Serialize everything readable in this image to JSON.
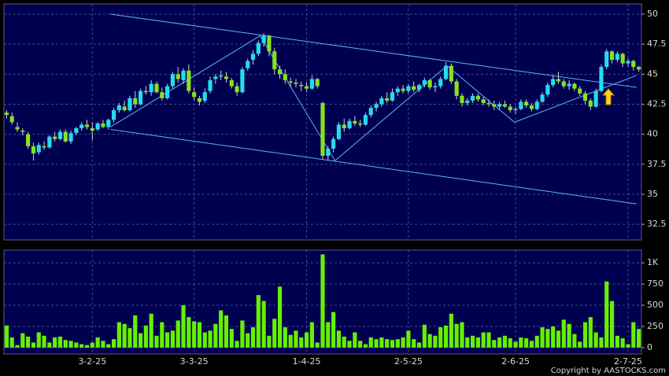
{
  "chart_data": [
    {
      "type": "candlestick",
      "categories": [
        null,
        null,
        null,
        null,
        null,
        null,
        null,
        null,
        null,
        null,
        null,
        null,
        null,
        null,
        null,
        null,
        "3-2-25",
        null,
        null,
        null,
        null,
        null,
        null,
        null,
        null,
        null,
        null,
        null,
        null,
        null,
        null,
        null,
        null,
        null,
        null,
        "3-3-25",
        null,
        null,
        null,
        null,
        null,
        null,
        null,
        null,
        null,
        null,
        null,
        null,
        null,
        null,
        null,
        null,
        null,
        null,
        null,
        null,
        "1-4-25",
        null,
        null,
        null,
        null,
        null,
        null,
        null,
        null,
        null,
        null,
        null,
        null,
        null,
        null,
        null,
        null,
        null,
        null,
        "2-5-25",
        null,
        null,
        null,
        null,
        null,
        null,
        null,
        null,
        null,
        null,
        null,
        null,
        null,
        null,
        null,
        null,
        null,
        null,
        null,
        "2-6-25",
        null,
        null,
        null,
        null,
        null,
        null,
        null,
        null,
        null,
        null,
        null,
        null,
        null,
        null,
        null,
        null,
        null,
        null,
        null,
        null,
        "2-7-25",
        null,
        null
      ],
      "ohlc": [
        [
          41.8,
          42.0,
          41.3,
          41.6
        ],
        [
          41.5,
          41.8,
          40.8,
          41.0
        ],
        [
          40.6,
          41.0,
          40.2,
          40.4
        ],
        [
          40.3,
          40.5,
          39.9,
          40.2
        ],
        [
          40.0,
          40.2,
          38.8,
          39.0
        ],
        [
          39.0,
          39.3,
          37.8,
          38.4
        ],
        [
          38.5,
          39.3,
          38.3,
          39.1
        ],
        [
          39.0,
          39.4,
          38.7,
          38.9
        ],
        [
          38.9,
          39.9,
          38.8,
          39.8
        ],
        [
          39.8,
          40.2,
          39.4,
          39.6
        ],
        [
          39.6,
          40.4,
          39.5,
          40.2
        ],
        [
          40.2,
          40.4,
          39.3,
          39.4
        ],
        [
          39.4,
          40.3,
          39.2,
          40.1
        ],
        [
          40.1,
          40.6,
          39.9,
          40.5
        ],
        [
          40.5,
          41.0,
          40.3,
          40.8
        ],
        [
          40.8,
          41.2,
          40.4,
          40.6
        ],
        [
          40.5,
          41.0,
          39.5,
          40.3
        ],
        [
          40.4,
          41.0,
          40.3,
          40.9
        ],
        [
          40.9,
          41.2,
          40.5,
          40.6
        ],
        [
          40.6,
          41.3,
          40.4,
          41.2
        ],
        [
          41.2,
          42.2,
          41.0,
          42.0
        ],
        [
          42.0,
          42.6,
          41.8,
          42.4
        ],
        [
          42.3,
          42.8,
          41.9,
          42.0
        ],
        [
          42.0,
          43.2,
          41.9,
          43.0
        ],
        [
          43.0,
          43.6,
          42.2,
          42.5
        ],
        [
          42.5,
          43.8,
          42.4,
          43.6
        ],
        [
          43.6,
          44.0,
          43.3,
          43.5
        ],
        [
          43.5,
          44.5,
          43.2,
          44.2
        ],
        [
          44.2,
          44.4,
          43.4,
          43.5
        ],
        [
          43.5,
          43.9,
          42.8,
          43.0
        ],
        [
          43.0,
          44.2,
          42.9,
          44.0
        ],
        [
          44.0,
          45.2,
          43.8,
          45.0
        ],
        [
          45.0,
          45.6,
          44.3,
          44.6
        ],
        [
          44.5,
          45.5,
          44.2,
          45.3
        ],
        [
          45.3,
          45.8,
          43.4,
          43.6
        ],
        [
          43.5,
          43.9,
          42.8,
          43.1
        ],
        [
          43.0,
          43.2,
          42.4,
          42.7
        ],
        [
          42.8,
          43.8,
          42.6,
          43.5
        ],
        [
          43.6,
          44.8,
          43.4,
          44.5
        ],
        [
          44.6,
          45.0,
          44.2,
          44.8
        ],
        [
          44.8,
          45.3,
          44.5,
          44.9
        ],
        [
          44.8,
          45.2,
          44.3,
          44.6
        ],
        [
          44.5,
          44.7,
          43.8,
          44.0
        ],
        [
          44.0,
          44.3,
          43.2,
          43.5
        ],
        [
          43.5,
          45.6,
          43.4,
          45.4
        ],
        [
          45.5,
          46.3,
          45.3,
          46.1
        ],
        [
          46.2,
          47.0,
          45.8,
          46.7
        ],
        [
          46.7,
          47.8,
          46.5,
          47.6
        ],
        [
          47.6,
          48.4,
          47.3,
          48.2
        ],
        [
          48.2,
          48.3,
          46.5,
          46.9
        ],
        [
          46.9,
          47.2,
          45.0,
          45.4
        ],
        [
          45.4,
          45.7,
          44.6,
          45.0
        ],
        [
          45.0,
          45.4,
          44.2,
          44.5
        ],
        [
          44.4,
          44.7,
          43.9,
          44.3
        ],
        [
          44.3,
          44.6,
          43.9,
          44.2
        ],
        [
          44.1,
          44.4,
          43.6,
          44.0
        ],
        [
          44.0,
          44.3,
          43.5,
          43.8
        ],
        [
          43.8,
          44.9,
          43.7,
          44.6
        ],
        [
          44.6,
          44.7,
          43.8,
          44.0
        ],
        [
          42.6,
          42.7,
          37.9,
          38.2
        ],
        [
          38.2,
          39.0,
          37.8,
          38.8
        ],
        [
          38.8,
          39.8,
          38.5,
          39.6
        ],
        [
          39.6,
          41.0,
          39.5,
          40.8
        ],
        [
          40.8,
          41.3,
          40.2,
          40.5
        ],
        [
          40.5,
          41.3,
          40.4,
          41.1
        ],
        [
          41.1,
          41.5,
          40.7,
          40.9
        ],
        [
          40.9,
          41.2,
          40.6,
          40.8
        ],
        [
          40.8,
          41.8,
          40.7,
          41.6
        ],
        [
          41.6,
          42.4,
          41.4,
          42.2
        ],
        [
          42.2,
          42.7,
          41.9,
          42.5
        ],
        [
          42.5,
          43.2,
          42.3,
          43.0
        ],
        [
          43.0,
          43.5,
          42.6,
          42.8
        ],
        [
          42.8,
          43.8,
          42.7,
          43.5
        ],
        [
          43.5,
          44.0,
          43.2,
          43.8
        ],
        [
          43.8,
          44.1,
          43.4,
          43.6
        ],
        [
          43.6,
          44.2,
          43.4,
          44.0
        ],
        [
          44.0,
          44.4,
          43.5,
          43.7
        ],
        [
          43.7,
          44.2,
          43.5,
          44.1
        ],
        [
          44.1,
          44.7,
          43.9,
          44.5
        ],
        [
          44.5,
          44.6,
          43.7,
          43.9
        ],
        [
          43.9,
          44.3,
          43.5,
          44.0
        ],
        [
          44.0,
          44.8,
          43.8,
          44.6
        ],
        [
          44.6,
          46.0,
          44.5,
          45.7
        ],
        [
          45.7,
          45.9,
          44.2,
          44.4
        ],
        [
          44.4,
          44.6,
          42.9,
          43.2
        ],
        [
          43.2,
          43.4,
          42.3,
          42.6
        ],
        [
          42.6,
          43.0,
          42.4,
          42.8
        ],
        [
          42.8,
          43.4,
          42.6,
          43.2
        ],
        [
          43.2,
          43.4,
          42.7,
          42.9
        ],
        [
          42.9,
          43.1,
          42.4,
          42.6
        ],
        [
          42.6,
          42.9,
          42.3,
          42.5
        ],
        [
          42.5,
          42.8,
          42.0,
          42.3
        ],
        [
          42.3,
          42.7,
          42.1,
          42.5
        ],
        [
          42.5,
          42.8,
          42.2,
          42.3
        ],
        [
          42.3,
          42.5,
          41.8,
          42.0
        ],
        [
          42.0,
          42.3,
          41.7,
          42.1
        ],
        [
          42.1,
          42.9,
          42.0,
          42.7
        ],
        [
          42.7,
          42.9,
          42.2,
          42.4
        ],
        [
          42.4,
          42.6,
          41.9,
          42.1
        ],
        [
          42.1,
          42.9,
          42.0,
          42.7
        ],
        [
          42.7,
          43.5,
          42.6,
          43.3
        ],
        [
          43.3,
          44.3,
          43.1,
          44.1
        ],
        [
          44.1,
          44.9,
          43.9,
          44.6
        ],
        [
          44.6,
          45.2,
          44.2,
          44.4
        ],
        [
          44.4,
          44.6,
          43.8,
          44.0
        ],
        [
          44.0,
          44.5,
          43.7,
          44.2
        ],
        [
          44.2,
          44.3,
          43.6,
          43.8
        ],
        [
          43.8,
          44.0,
          43.2,
          43.4
        ],
        [
          43.4,
          43.6,
          42.5,
          42.8
        ],
        [
          42.8,
          43.0,
          42.0,
          42.3
        ],
        [
          42.3,
          43.8,
          42.2,
          43.6
        ],
        [
          43.6,
          45.8,
          43.5,
          45.6
        ],
        [
          45.6,
          47.1,
          45.4,
          46.9
        ],
        [
          46.9,
          47.0,
          45.9,
          46.2
        ],
        [
          46.2,
          46.9,
          46.0,
          46.7
        ],
        [
          46.7,
          46.8,
          45.6,
          45.9
        ],
        [
          45.9,
          46.3,
          45.6,
          46.1
        ],
        [
          46.1,
          46.2,
          45.3,
          45.6
        ],
        [
          45.6,
          45.7,
          45.2,
          45.4
        ]
      ],
      "up_color": "#22dcf2",
      "down_color": "#86e21e",
      "ylim": [
        31.2,
        50.85
      ],
      "yticks": [
        32.5,
        35,
        37.5,
        40,
        42.5,
        45,
        47.5,
        50
      ],
      "grid": true,
      "trendline_color": "#5ab4f0",
      "trendlines": [
        [
          [
            19.4,
            50.0
          ],
          [
            117.6,
            43.9
          ]
        ],
        [
          [
            19.4,
            40.4
          ],
          [
            117.6,
            34.2
          ]
        ],
        [
          [
            19.4,
            40.6
          ],
          [
            47.3,
            48.2
          ],
          [
            61.3,
            37.8
          ],
          [
            82.2,
            45.7
          ],
          [
            94.8,
            41.0
          ],
          [
            117.6,
            44.9
          ]
        ]
      ]
    },
    {
      "type": "bar",
      "values": [
        260,
        120,
        30,
        170,
        130,
        60,
        180,
        140,
        60,
        120,
        130,
        90,
        80,
        60,
        40,
        30,
        60,
        120,
        80,
        40,
        100,
        300,
        280,
        230,
        380,
        170,
        260,
        400,
        140,
        300,
        180,
        200,
        320,
        500,
        360,
        310,
        300,
        180,
        200,
        280,
        440,
        380,
        220,
        80,
        320,
        170,
        240,
        620,
        550,
        140,
        340,
        720,
        240,
        150,
        200,
        120,
        180,
        300,
        60,
        1100,
        300,
        420,
        200,
        130,
        80,
        180,
        80,
        40,
        120,
        100,
        120,
        100,
        90,
        100,
        120,
        200,
        100,
        60,
        270,
        160,
        140,
        240,
        260,
        400,
        280,
        300,
        120,
        140,
        120,
        180,
        180,
        90,
        120,
        140,
        110,
        70,
        120,
        110,
        80,
        140,
        240,
        220,
        250,
        200,
        330,
        280,
        160,
        70,
        300,
        360,
        180,
        120,
        780,
        550,
        140,
        110,
        40,
        300,
        220
      ],
      "color": "#66f000",
      "ylim": [
        -75,
        1150
      ],
      "yticks": [
        0,
        250,
        500,
        750,
        {
          "value": 1000,
          "label": "1K"
        }
      ],
      "grid": true
    }
  ],
  "copyright": "Copyright by AASTOCKS.com"
}
